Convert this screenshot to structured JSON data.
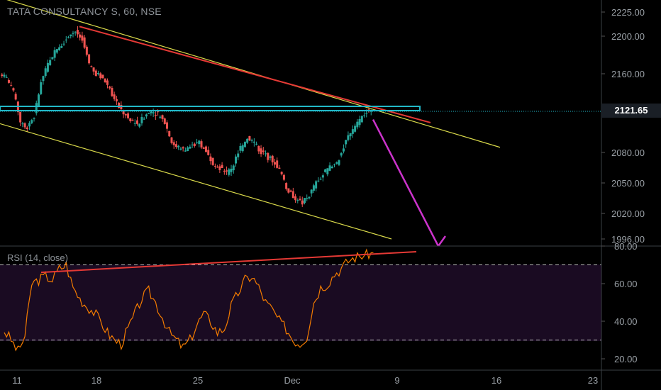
{
  "price_pane": {
    "title": "TATA CONSULTANCY S, 60, NSE",
    "last_price": "2121.65"
  },
  "rsi_pane": {
    "title": "RSI (14, close)"
  },
  "colors": {
    "up": "#26a69a",
    "down": "#ef5350",
    "channel": "#d9d94a",
    "trend": "#e53935",
    "resistance": "#22b8c7",
    "arrow": "#cc33cc",
    "rsi": "#f57c00",
    "rsi_band": "#1a0b22"
  },
  "chart_data": [
    {
      "type": "candlestick",
      "title": "TATA CONSULTANCY S, 60, NSE",
      "y_ticks": [
        "2225.00",
        "2200.00",
        "2160.00",
        "2120.00",
        "2080.00",
        "2050.00",
        "2020.00",
        "1996.00"
      ],
      "x_ticks": [
        "11",
        "18",
        "25",
        "Dec",
        "9",
        "16",
        "23"
      ],
      "last_price": 2121.65,
      "approx_close": [
        2155,
        2140,
        2110,
        2105,
        2115,
        2150,
        2170,
        2185,
        2192,
        2200,
        2205,
        2195,
        2170,
        2160,
        2155,
        2145,
        2130,
        2118,
        2110,
        2108,
        2115,
        2120,
        2118,
        2110,
        2090,
        2085,
        2082,
        2088,
        2090,
        2080,
        2070,
        2065,
        2060,
        2068,
        2085,
        2095,
        2090,
        2080,
        2075,
        2070,
        2058,
        2040,
        2035,
        2030,
        2038,
        2050,
        2058,
        2065,
        2070,
        2085,
        2100,
        2110,
        2118,
        2121.65
      ],
      "annotations": [
        "resistance ~2125",
        "descending channel",
        "projected drop to ~1996"
      ]
    },
    {
      "type": "line",
      "title": "RSI (14, close)",
      "y_ticks": [
        "80.00",
        "60.00",
        "40.00",
        "20.00"
      ],
      "bands": [
        30,
        70
      ],
      "values": [
        35,
        30,
        24,
        32,
        60,
        62,
        64,
        62,
        68,
        70,
        58,
        52,
        48,
        45,
        40,
        34,
        30,
        28,
        36,
        44,
        52,
        56,
        50,
        42,
        34,
        30,
        26,
        30,
        38,
        44,
        40,
        34,
        36,
        48,
        55,
        62,
        64,
        58,
        50,
        46,
        40,
        36,
        30,
        28,
        32,
        50,
        58,
        60,
        65,
        68,
        72,
        74,
        75,
        76
      ]
    }
  ]
}
